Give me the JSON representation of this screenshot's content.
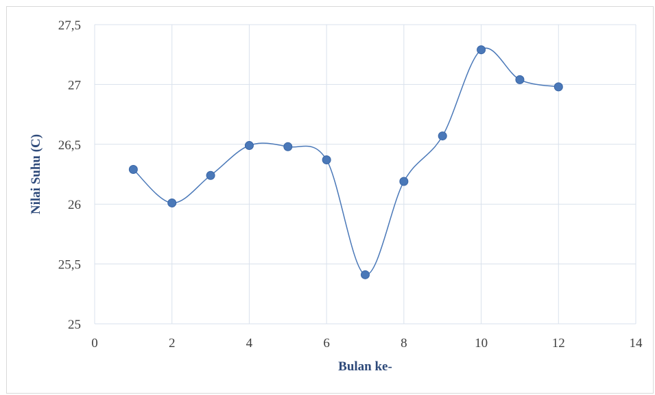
{
  "chart_data": {
    "type": "line",
    "smooth": true,
    "xlabel": "Bulan ke-",
    "ylabel": "Nilai Suhu (C)",
    "xlim": [
      0,
      14
    ],
    "ylim": [
      25,
      27.5
    ],
    "x_ticks": [
      0,
      2,
      4,
      6,
      8,
      10,
      12,
      14
    ],
    "y_ticks": [
      25,
      25.5,
      26,
      26.5,
      27,
      27.5
    ],
    "x_tick_labels": [
      "0",
      "2",
      "4",
      "6",
      "8",
      "10",
      "12",
      "14"
    ],
    "y_tick_labels": [
      "25",
      "25,5",
      "26",
      "26,5",
      "27",
      "27,5"
    ],
    "grid": true,
    "series": [
      {
        "x": [
          1,
          2,
          3,
          4,
          5,
          6,
          7,
          8,
          9,
          10,
          11,
          12
        ],
        "values": [
          26.29,
          26.01,
          26.24,
          26.49,
          26.48,
          26.37,
          25.41,
          26.19,
          26.57,
          27.29,
          27.04,
          26.98
        ],
        "color": "#4a78b8"
      }
    ],
    "colors": {
      "grid": "#d9e1ec",
      "line": "#4a78b8",
      "marker": "#4a78b8",
      "axis_title": "#2e4a7a",
      "tick": "#404040"
    }
  }
}
